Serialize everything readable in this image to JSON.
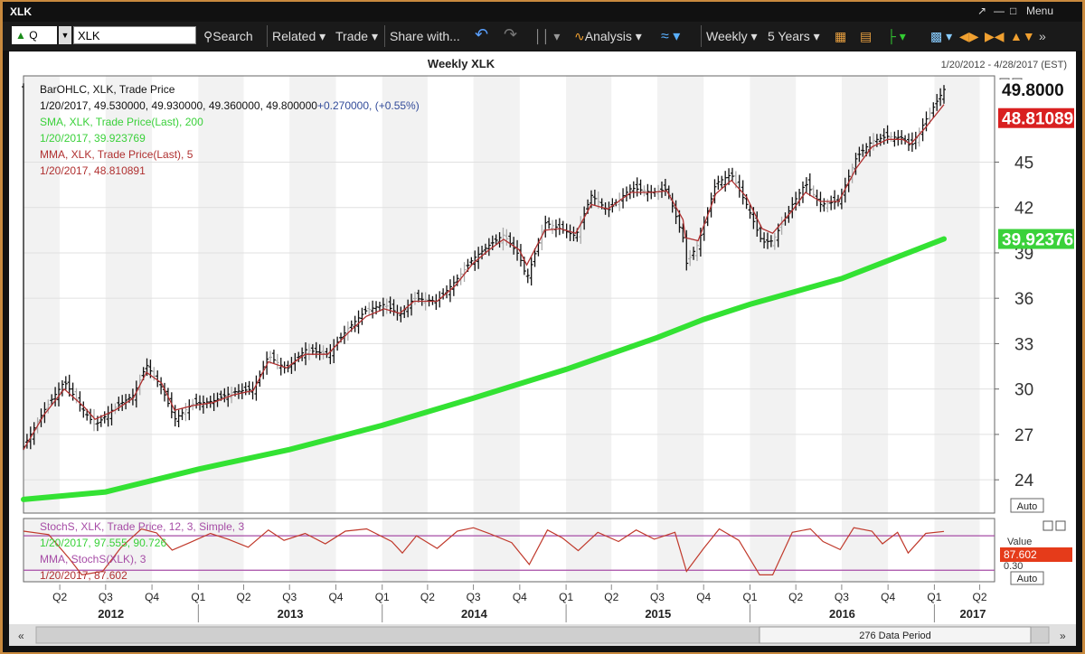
{
  "window": {
    "title": "XLK",
    "menu_label": "Menu"
  },
  "toolbar": {
    "q_label": "Q",
    "symbol_value": "XLK",
    "search_label": "Search",
    "related_label": "Related",
    "trade_label": "Trade",
    "share_label": "Share with...",
    "analysis_label": "Analysis",
    "period_label": "Weekly",
    "range_label": "5 Years"
  },
  "chart_header": {
    "title": "Weekly XLK",
    "date_range": "1/20/2012 - 4/28/2017 (EST)"
  },
  "legend": {
    "line1": "BarOHLC, XLK, Trade Price",
    "line2a": "1/20/2017, 49.530000, 49.930000, 49.360000, 49.800000",
    "line2b": "+0.270000, (+0.55%)",
    "line3": "SMA, XLK, Trade Price(Last), 200",
    "line4": "1/20/2017, 39.923769",
    "line5": "MMA, XLK, Trade Price(Last), 5",
    "line6": "1/20/2017, 48.810891"
  },
  "price_badges": {
    "last": "49.8000",
    "mma": "48.81089",
    "sma": "39.92376"
  },
  "auto_label": "Auto",
  "stoch": {
    "line1": "StochS, XLK, Trade Price, 12, 3, Simple, 3",
    "line2": "1/20/2017, 97.555, 90.726",
    "line3": "MMA, StochS(XLK), 3",
    "line4": "1/20/2017, 87.602",
    "value_label": "Value",
    "badge": "87.602",
    "lower_tick": "0.30"
  },
  "footer": {
    "data_period": "276 Data Period"
  },
  "colors": {
    "bars": "#111111",
    "mma": "#b03030",
    "sma": "#33e233",
    "stoch": "#c0392b",
    "stoch_ref": "#a64ca6"
  },
  "chart_data": {
    "type": "line",
    "title": "Weekly XLK",
    "x_range": [
      "2012-01-20",
      "2017-01-20"
    ],
    "y_axis": {
      "ticks": [
        24,
        27,
        30,
        33,
        36,
        39,
        42,
        45
      ],
      "ylim": [
        21.8,
        50.7
      ],
      "position": "right"
    },
    "x_axis": {
      "quarters": [
        "Q2",
        "Q3",
        "Q4",
        "Q1",
        "Q2",
        "Q3",
        "Q4",
        "Q1",
        "Q2",
        "Q3",
        "Q4",
        "Q1",
        "Q2",
        "Q3",
        "Q4",
        "Q1",
        "Q2",
        "Q3",
        "Q4",
        "Q1",
        "Q2"
      ],
      "years": [
        "2012",
        "2013",
        "2014",
        "2015",
        "2016",
        "2017"
      ]
    },
    "series": [
      {
        "name": "BarOHLC, XLK, Trade Price",
        "style": "ohlc-bars",
        "points": [
          [
            "2012-01-20",
            26.2
          ],
          [
            "2012-03-01",
            28.6
          ],
          [
            "2012-04-10",
            30.5
          ],
          [
            "2012-05-20",
            28.5
          ],
          [
            "2012-06-10",
            27.6
          ],
          [
            "2012-07-20",
            28.8
          ],
          [
            "2012-08-25",
            29.6
          ],
          [
            "2012-09-20",
            31.6
          ],
          [
            "2012-10-20",
            30.1
          ],
          [
            "2012-11-15",
            28.0
          ],
          [
            "2012-12-20",
            29.0
          ],
          [
            "2013-01-30",
            29.2
          ],
          [
            "2013-03-10",
            29.8
          ],
          [
            "2013-04-20",
            30.0
          ],
          [
            "2013-05-20",
            32.2
          ],
          [
            "2013-06-25",
            31.3
          ],
          [
            "2013-08-01",
            32.6
          ],
          [
            "2013-09-15",
            32.3
          ],
          [
            "2013-10-25",
            34.0
          ],
          [
            "2013-11-30",
            35.2
          ],
          [
            "2014-01-05",
            35.6
          ],
          [
            "2014-02-05",
            34.9
          ],
          [
            "2014-03-05",
            36.0
          ],
          [
            "2014-04-20",
            35.8
          ],
          [
            "2014-05-25",
            37.1
          ],
          [
            "2014-06-30",
            38.6
          ],
          [
            "2014-08-01",
            39.5
          ],
          [
            "2014-08-30",
            40.2
          ],
          [
            "2014-09-30",
            38.8
          ],
          [
            "2014-10-15",
            37.3
          ],
          [
            "2014-11-20",
            41.0
          ],
          [
            "2014-12-20",
            40.6
          ],
          [
            "2015-01-20",
            40.1
          ],
          [
            "2015-02-20",
            42.8
          ],
          [
            "2015-03-25",
            41.8
          ],
          [
            "2015-05-10",
            43.3
          ],
          [
            "2015-06-20",
            43.0
          ],
          [
            "2015-07-20",
            43.2
          ],
          [
            "2015-08-21",
            40.0
          ],
          [
            "2015-08-26",
            38.2
          ],
          [
            "2015-09-20",
            39.6
          ],
          [
            "2015-10-25",
            43.6
          ],
          [
            "2015-11-25",
            44.2
          ],
          [
            "2015-12-25",
            42.2
          ],
          [
            "2016-01-25",
            39.7
          ],
          [
            "2016-02-15",
            39.8
          ],
          [
            "2016-03-25",
            42.2
          ],
          [
            "2016-04-20",
            43.6
          ],
          [
            "2016-05-20",
            42.2
          ],
          [
            "2016-06-25",
            42.4
          ],
          [
            "2016-07-30",
            45.3
          ],
          [
            "2016-08-30",
            46.4
          ],
          [
            "2016-09-30",
            46.7
          ],
          [
            "2016-10-30",
            46.6
          ],
          [
            "2016-11-15",
            46.0
          ],
          [
            "2016-12-15",
            47.8
          ],
          [
            "2017-01-20",
            49.8
          ]
        ]
      },
      {
        "name": "MMA, XLK, Trade Price(Last), 5",
        "style": "line",
        "points": [
          [
            "2012-01-20",
            26.0
          ],
          [
            "2012-03-01",
            28.3
          ],
          [
            "2012-04-10",
            30.0
          ],
          [
            "2012-05-20",
            28.8
          ],
          [
            "2012-06-10",
            28.0
          ],
          [
            "2012-07-20",
            28.6
          ],
          [
            "2012-08-25",
            29.4
          ],
          [
            "2012-09-20",
            31.1
          ],
          [
            "2012-10-20",
            30.4
          ],
          [
            "2012-11-15",
            28.6
          ],
          [
            "2012-12-20",
            28.9
          ],
          [
            "2013-01-30",
            29.1
          ],
          [
            "2013-03-10",
            29.6
          ],
          [
            "2013-04-20",
            29.9
          ],
          [
            "2013-05-20",
            31.8
          ],
          [
            "2013-06-25",
            31.4
          ],
          [
            "2013-08-01",
            32.3
          ],
          [
            "2013-09-15",
            32.3
          ],
          [
            "2013-10-25",
            33.7
          ],
          [
            "2013-11-30",
            34.8
          ],
          [
            "2014-01-05",
            35.3
          ],
          [
            "2014-02-05",
            35.0
          ],
          [
            "2014-03-05",
            35.8
          ],
          [
            "2014-04-20",
            35.8
          ],
          [
            "2014-05-25",
            36.8
          ],
          [
            "2014-06-30",
            38.3
          ],
          [
            "2014-08-01",
            39.2
          ],
          [
            "2014-08-30",
            39.9
          ],
          [
            "2014-09-30",
            39.2
          ],
          [
            "2014-10-15",
            38.2
          ],
          [
            "2014-11-20",
            40.5
          ],
          [
            "2014-12-20",
            40.6
          ],
          [
            "2015-01-20",
            40.3
          ],
          [
            "2015-02-20",
            42.2
          ],
          [
            "2015-03-25",
            41.9
          ],
          [
            "2015-05-10",
            43.0
          ],
          [
            "2015-06-20",
            43.0
          ],
          [
            "2015-07-20",
            43.1
          ],
          [
            "2015-08-21",
            41.2
          ],
          [
            "2015-08-26",
            40.0
          ],
          [
            "2015-09-20",
            39.8
          ],
          [
            "2015-10-25",
            42.9
          ],
          [
            "2015-11-25",
            43.8
          ],
          [
            "2015-12-25",
            42.7
          ],
          [
            "2016-01-25",
            40.6
          ],
          [
            "2016-02-15",
            40.3
          ],
          [
            "2016-03-25",
            41.8
          ],
          [
            "2016-04-20",
            43.0
          ],
          [
            "2016-05-20",
            42.4
          ],
          [
            "2016-06-25",
            42.4
          ],
          [
            "2016-07-30",
            44.6
          ],
          [
            "2016-08-30",
            46.0
          ],
          [
            "2016-09-30",
            46.5
          ],
          [
            "2016-10-30",
            46.5
          ],
          [
            "2016-11-15",
            46.2
          ],
          [
            "2016-12-15",
            47.3
          ],
          [
            "2017-01-20",
            48.81
          ]
        ]
      },
      {
        "name": "SMA, XLK, Trade Price(Last), 200",
        "style": "thick-line",
        "points": [
          [
            "2012-01-20",
            22.7
          ],
          [
            "2012-07-01",
            23.2
          ],
          [
            "2013-01-01",
            24.7
          ],
          [
            "2013-07-01",
            26.0
          ],
          [
            "2014-01-01",
            27.6
          ],
          [
            "2014-07-01",
            29.4
          ],
          [
            "2015-01-01",
            31.3
          ],
          [
            "2015-07-01",
            33.4
          ],
          [
            "2015-10-01",
            34.6
          ],
          [
            "2016-01-01",
            35.6
          ],
          [
            "2016-07-01",
            37.3
          ],
          [
            "2017-01-20",
            39.92
          ]
        ]
      }
    ],
    "stochastic": {
      "ylim": [
        0,
        110
      ],
      "ref_levels": [
        80,
        20
      ],
      "series": [
        {
          "name": "MMA, StochS(XLK), 3",
          "points": [
            [
              "2012-01-20",
              88
            ],
            [
              "2012-03-10",
              82
            ],
            [
              "2012-04-20",
              40
            ],
            [
              "2012-05-15",
              12
            ],
            [
              "2012-06-25",
              18
            ],
            [
              "2012-08-01",
              60
            ],
            [
              "2012-09-10",
              92
            ],
            [
              "2012-10-10",
              85
            ],
            [
              "2012-11-10",
              55
            ],
            [
              "2012-12-15",
              68
            ],
            [
              "2013-01-25",
              84
            ],
            [
              "2013-03-01",
              74
            ],
            [
              "2013-04-10",
              60
            ],
            [
              "2013-05-20",
              90
            ],
            [
              "2013-06-20",
              72
            ],
            [
              "2013-08-01",
              84
            ],
            [
              "2013-09-10",
              66
            ],
            [
              "2013-10-20",
              88
            ],
            [
              "2013-12-01",
              92
            ],
            [
              "2014-01-20",
              70
            ],
            [
              "2014-02-10",
              50
            ],
            [
              "2014-03-10",
              80
            ],
            [
              "2014-04-20",
              58
            ],
            [
              "2014-05-30",
              88
            ],
            [
              "2014-07-01",
              94
            ],
            [
              "2014-08-01",
              84
            ],
            [
              "2014-09-15",
              68
            ],
            [
              "2014-10-20",
              30
            ],
            [
              "2014-11-25",
              90
            ],
            [
              "2014-12-25",
              76
            ],
            [
              "2015-01-25",
              54
            ],
            [
              "2015-03-05",
              86
            ],
            [
              "2015-04-15",
              70
            ],
            [
              "2015-05-20",
              90
            ],
            [
              "2015-06-25",
              74
            ],
            [
              "2015-08-05",
              86
            ],
            [
              "2015-08-28",
              18
            ],
            [
              "2015-10-01",
              58
            ],
            [
              "2015-11-01",
              92
            ],
            [
              "2015-12-10",
              72
            ],
            [
              "2016-01-20",
              12
            ],
            [
              "2016-02-15",
              12
            ],
            [
              "2016-03-25",
              86
            ],
            [
              "2016-04-30",
              92
            ],
            [
              "2016-05-25",
              70
            ],
            [
              "2016-06-28",
              56
            ],
            [
              "2016-07-25",
              94
            ],
            [
              "2016-08-30",
              88
            ],
            [
              "2016-09-20",
              66
            ],
            [
              "2016-10-20",
              86
            ],
            [
              "2016-11-10",
              50
            ],
            [
              "2016-12-15",
              84
            ],
            [
              "2017-01-20",
              87.6
            ]
          ]
        }
      ]
    }
  }
}
